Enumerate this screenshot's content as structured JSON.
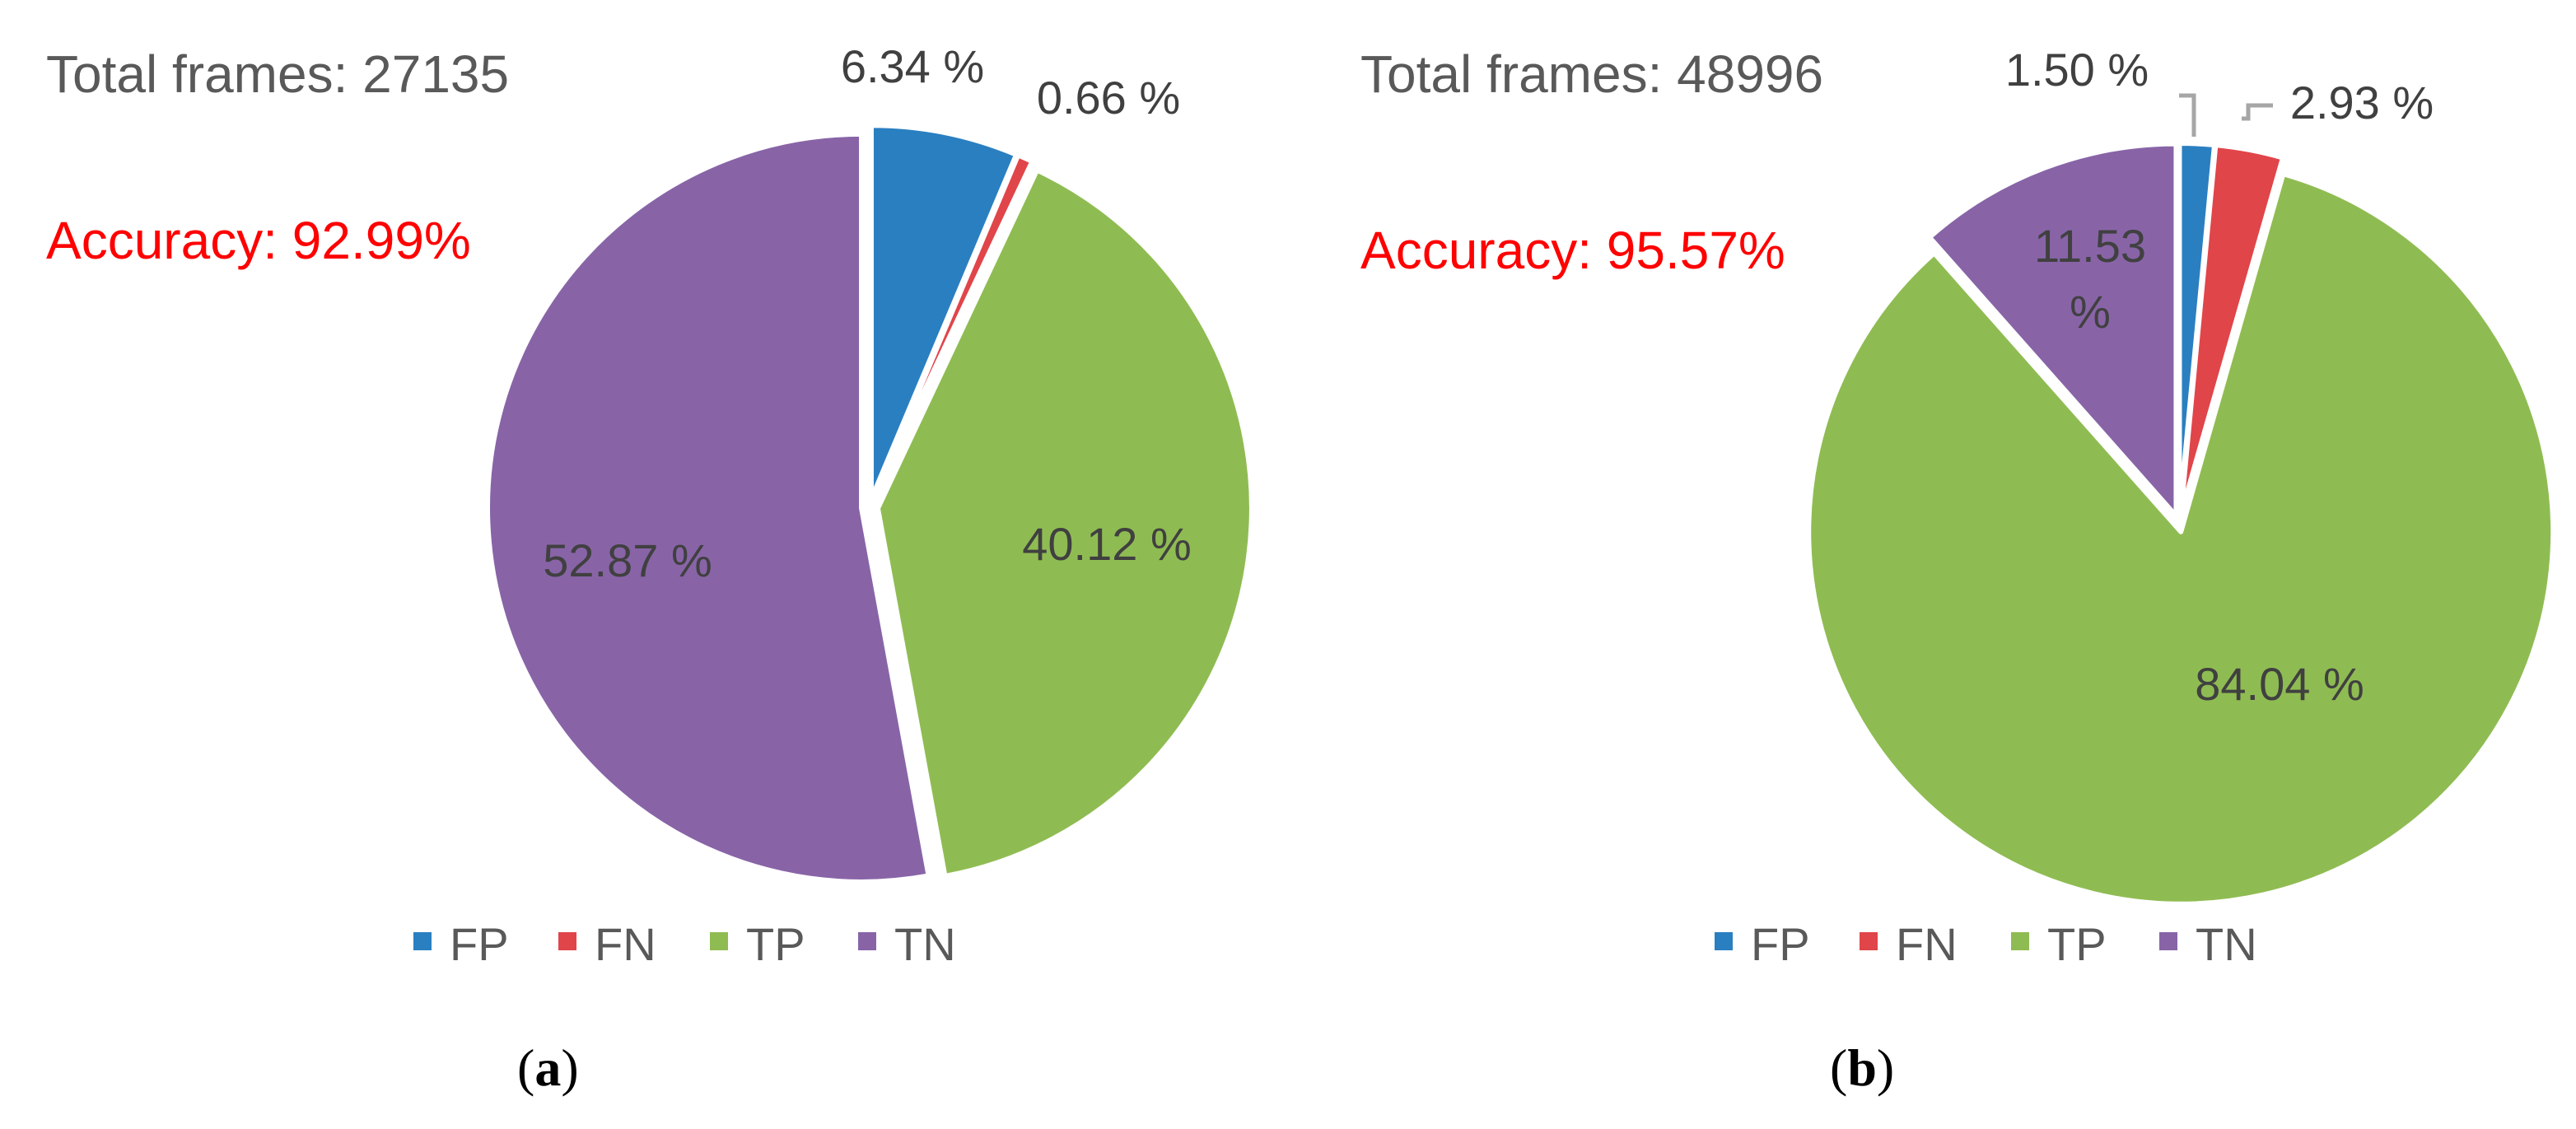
{
  "chart_data": [
    {
      "type": "pie",
      "panel_label": "a",
      "annotations": {
        "total": "Total frames: 27135",
        "accuracy": "Accuracy: 92.99%"
      },
      "legend": [
        "FP",
        "FN",
        "TP",
        "TN"
      ],
      "legend_position": "bottom",
      "slices": [
        {
          "name": "FP",
          "value": 6.34,
          "label": "6.34 %",
          "color": "#2a7fc1"
        },
        {
          "name": "FN",
          "value": 0.66,
          "label": "0.66 %",
          "color": "#e0454a"
        },
        {
          "name": "TP",
          "value": 40.12,
          "label": "40.12 %",
          "color": "#8fbc52"
        },
        {
          "name": "TN",
          "value": 52.87,
          "label": "52.87 %",
          "color": "#8864a7"
        }
      ]
    },
    {
      "type": "pie",
      "panel_label": "b",
      "annotations": {
        "total": "Total frames: 48996",
        "accuracy": "Accuracy: 95.57%"
      },
      "legend": [
        "FP",
        "FN",
        "TP",
        "TN"
      ],
      "legend_position": "bottom",
      "slices": [
        {
          "name": "FP",
          "value": 1.5,
          "label": "1.50 %",
          "color": "#2a7fc1"
        },
        {
          "name": "FN",
          "value": 2.93,
          "label": "2.93 %",
          "color": "#e0454a"
        },
        {
          "name": "TP",
          "value": 84.04,
          "label": "84.04 %",
          "color": "#8fbc52"
        },
        {
          "name": "TN",
          "value": 11.53,
          "label": "11.53 %",
          "color": "#8864a7"
        }
      ]
    }
  ],
  "colors": {
    "annotation_text": "#595959",
    "accuracy_text": "#ff0000",
    "slice_label_text": "#404040",
    "leader_line": "#a6a6a6"
  }
}
